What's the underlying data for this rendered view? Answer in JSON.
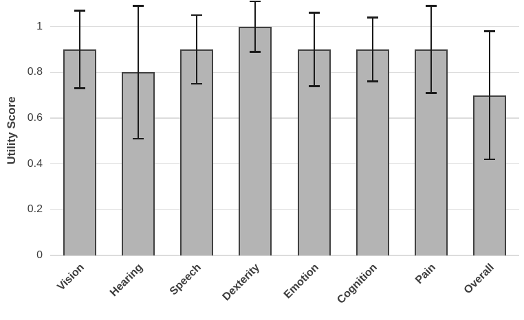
{
  "chart_data": {
    "type": "bar",
    "title": "",
    "xlabel": "",
    "ylabel": "Utility Score",
    "categories": [
      "Vision",
      "Hearing",
      "Speech",
      "Dexterity",
      "Emotion",
      "Cognition",
      "Pain",
      "Overall"
    ],
    "values": [
      0.9,
      0.8,
      0.9,
      1.0,
      0.9,
      0.9,
      0.9,
      0.7
    ],
    "error_low": [
      0.73,
      0.51,
      0.75,
      0.89,
      0.74,
      0.76,
      0.71,
      0.42
    ],
    "error_high": [
      1.07,
      1.09,
      1.05,
      1.11,
      1.06,
      1.04,
      1.09,
      0.98
    ],
    "ylim": [
      0,
      1.115
    ],
    "yticks": [
      0,
      0.2,
      0.4,
      0.6,
      0.8,
      1
    ],
    "ytick_labels": [
      "0",
      "0.2",
      "0.4",
      "0.6",
      "0.8",
      "1"
    ],
    "grid": true,
    "legend": false,
    "colors": {
      "bar_fill": "#b4b4b4",
      "bar_border": "#404040",
      "error_bar": "#1a1a1a",
      "gridline": "#dcdcdc",
      "text": "#3d3d3d",
      "background": "#ffffff"
    }
  }
}
